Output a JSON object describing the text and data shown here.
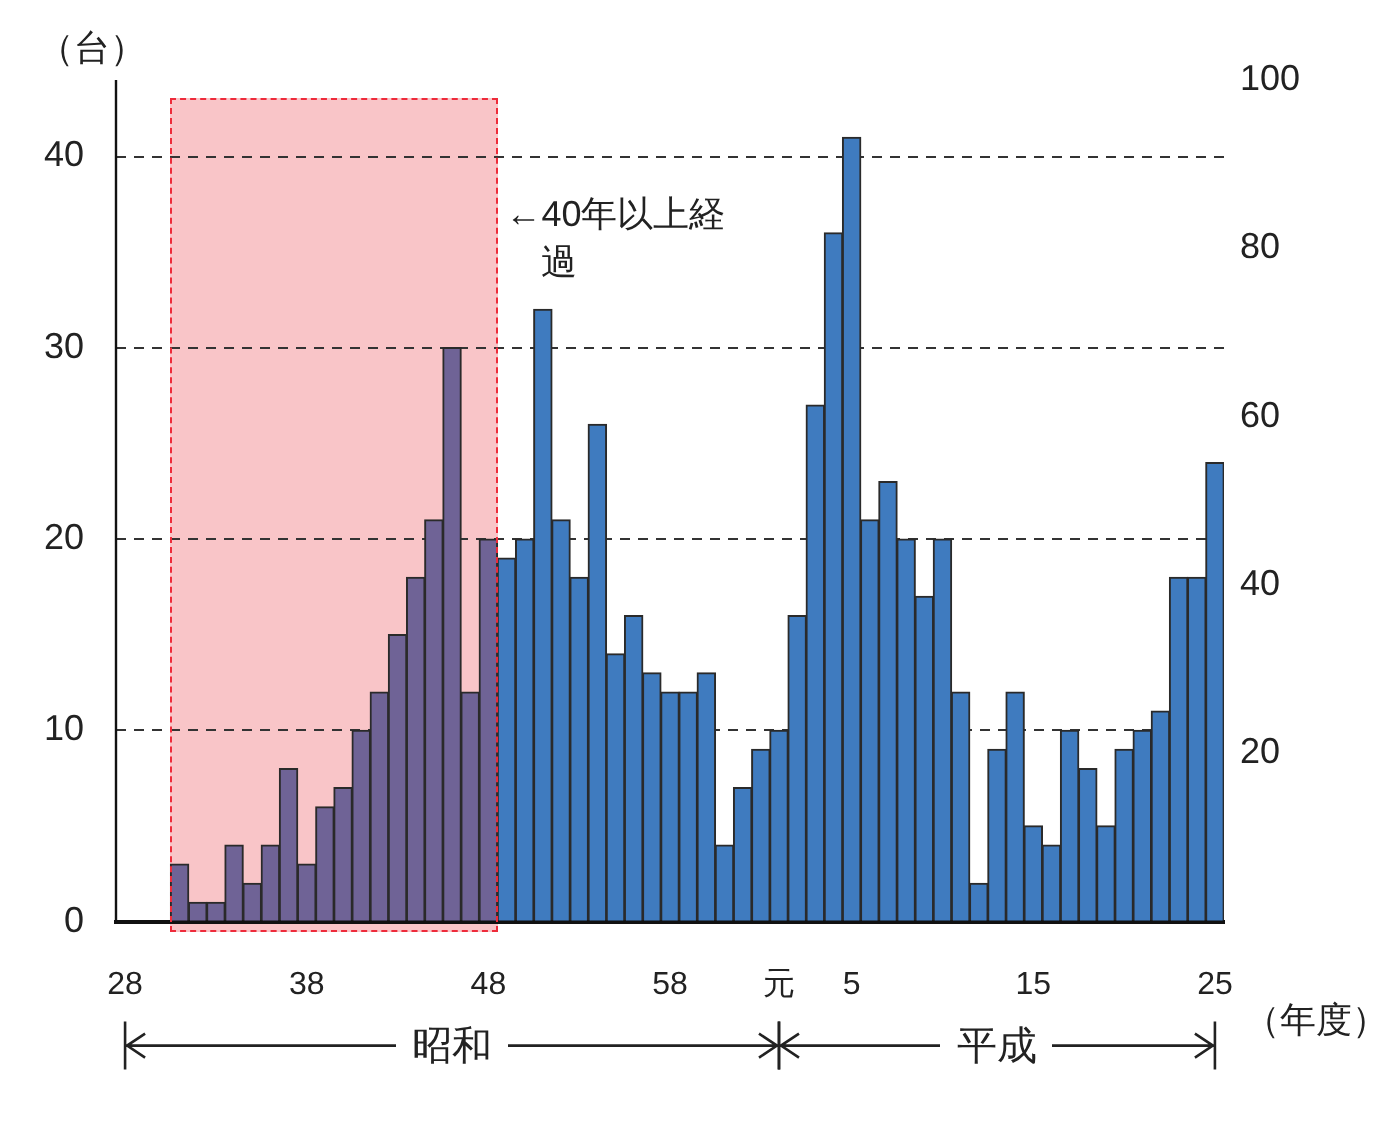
{
  "chart_data": {
    "type": "bar",
    "ylabel": "（台）",
    "xlabel": "（年度）",
    "categories": [
      "28",
      null,
      null,
      null,
      null,
      null,
      null,
      null,
      null,
      null,
      "38",
      null,
      null,
      null,
      null,
      null,
      null,
      null,
      null,
      null,
      "48",
      null,
      null,
      null,
      null,
      null,
      null,
      null,
      null,
      null,
      "58",
      null,
      null,
      null,
      null,
      null,
      "元",
      null,
      null,
      null,
      "5",
      null,
      null,
      null,
      null,
      null,
      null,
      null,
      null,
      null,
      "15",
      null,
      null,
      null,
      null,
      null,
      null,
      null,
      null,
      null,
      "25"
    ],
    "values": [
      null,
      null,
      null,
      3,
      1,
      1,
      4,
      2,
      4,
      8,
      3,
      6,
      7,
      10,
      12,
      15,
      18,
      21,
      30,
      12,
      20,
      19,
      20,
      32,
      21,
      18,
      26,
      14,
      16,
      13,
      12,
      12,
      13,
      4,
      7,
      9,
      10,
      16,
      27,
      36,
      41,
      21,
      23,
      20,
      17,
      20,
      12,
      2,
      9,
      12,
      5,
      4,
      10,
      8,
      5,
      9,
      10,
      11,
      18,
      18,
      24
    ],
    "colors": [
      "#6f6396",
      "#6f6396",
      "#6f6396",
      "#6f6396",
      "#6f6396",
      "#6f6396",
      "#6f6396",
      "#6f6396",
      "#6f6396",
      "#6f6396",
      "#6f6396",
      "#6f6396",
      "#6f6396",
      "#6f6396",
      "#6f6396",
      "#6f6396",
      "#6f6396",
      "#6f6396",
      "#6f6396",
      "#6f6396",
      "#6f6396",
      "#3f7bbf",
      "#3f7bbf",
      "#3f7bbf",
      "#3f7bbf",
      "#3f7bbf",
      "#3f7bbf",
      "#3f7bbf",
      "#3f7bbf",
      "#3f7bbf",
      "#3f7bbf",
      "#3f7bbf",
      "#3f7bbf",
      "#3f7bbf",
      "#3f7bbf",
      "#3f7bbf",
      "#3f7bbf",
      "#3f7bbf",
      "#3f7bbf",
      "#3f7bbf",
      "#3f7bbf",
      "#3f7bbf",
      "#3f7bbf",
      "#3f7bbf",
      "#3f7bbf",
      "#3f7bbf",
      "#3f7bbf",
      "#3f7bbf",
      "#3f7bbf",
      "#3f7bbf",
      "#3f7bbf",
      "#3f7bbf",
      "#3f7bbf",
      "#3f7bbf",
      "#3f7bbf",
      "#3f7bbf",
      "#3f7bbf",
      "#3f7bbf",
      "#3f7bbf",
      "#3f7bbf",
      "#3f7bbf"
    ],
    "ylim": [
      0,
      44
    ],
    "yticks": [
      0,
      10,
      20,
      30,
      40
    ],
    "y2lim": [
      0,
      100
    ],
    "y2ticks": [
      20,
      40,
      60,
      80,
      100
    ],
    "grid": "y",
    "line_style": "dashed",
    "legend": false,
    "annotations": [
      "←40年以上経過",
      "昭和",
      "平成"
    ]
  }
}
